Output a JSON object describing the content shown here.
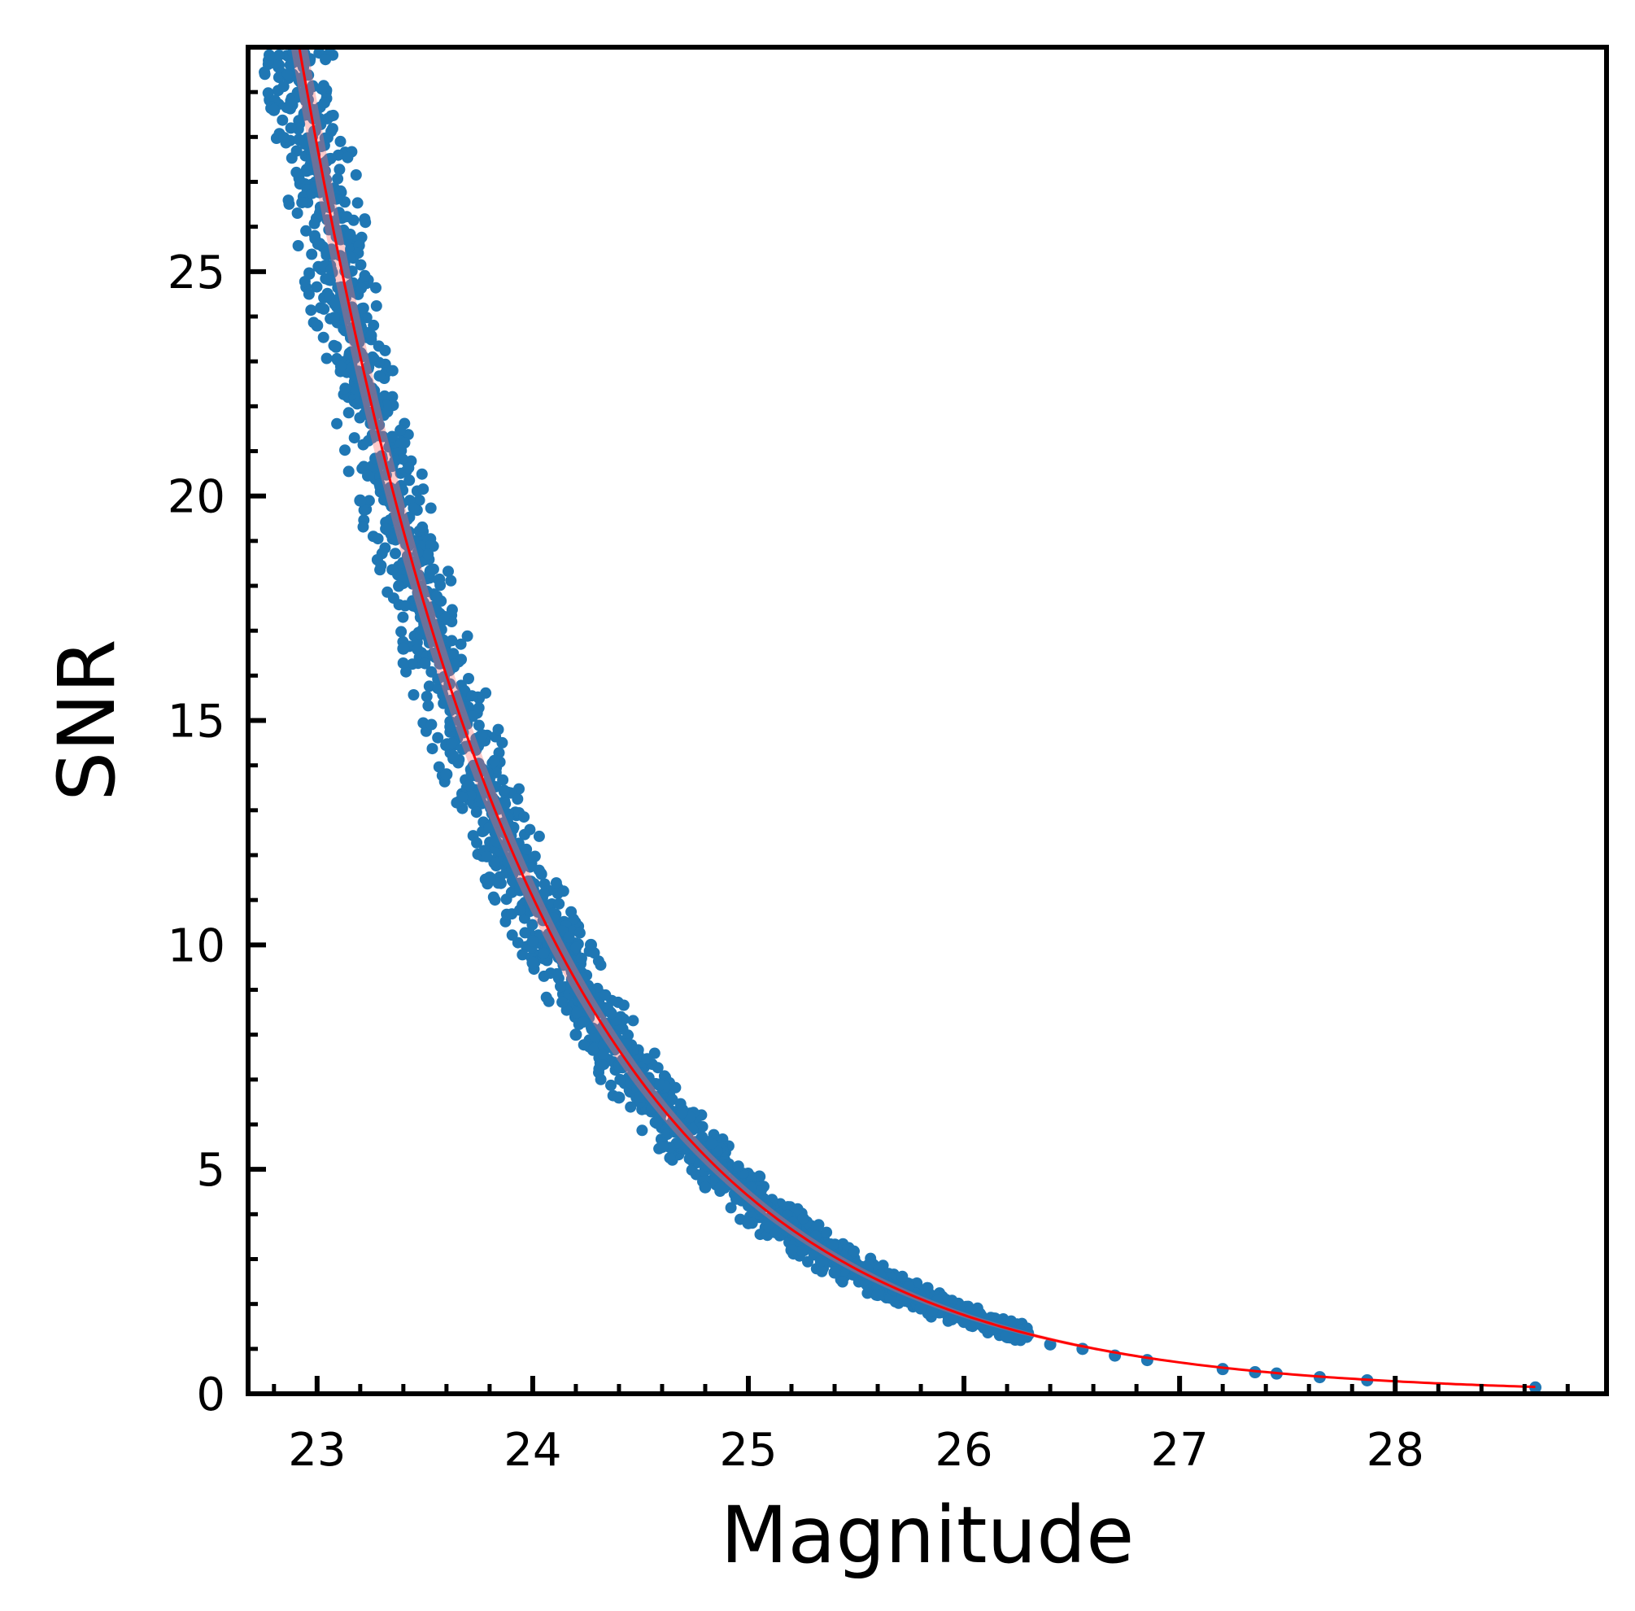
{
  "chart_data": {
    "type": "scatter",
    "title": "",
    "xlabel": "Magnitude",
    "ylabel": "SNR",
    "xlim": [
      22.68,
      28.98
    ],
    "ylim": [
      0,
      30
    ],
    "x_ticks": [
      23,
      24,
      25,
      26,
      27,
      28
    ],
    "y_ticks": [
      0,
      5,
      10,
      15,
      20,
      25
    ],
    "x_tick_labels": [
      "23",
      "24",
      "25",
      "26",
      "27",
      "28"
    ],
    "y_tick_labels": [
      "0",
      "5",
      "10",
      "15",
      "20",
      "25"
    ],
    "grid": false,
    "legend": "none",
    "colors": {
      "points": "#1f77b4",
      "fit_line": "#ff0000",
      "fit_band": "#ff6666"
    },
    "fit_curve": {
      "description_model": "SNR = 10^(0.4*(m0 - m))",
      "m0": 26.61,
      "x_range": [
        22.76,
        28.65
      ]
    },
    "series": [
      {
        "type": "scatter",
        "x_range": [
          22.72,
          28.65
        ],
        "scatter_fraction": 0.07,
        "sampled_points": [
          {
            "x": 22.8,
            "y": 28.6
          },
          {
            "x": 23.0,
            "y": 23.8
          },
          {
            "x": 23.2,
            "y": 19.9
          },
          {
            "x": 23.4,
            "y": 16.6
          },
          {
            "x": 23.6,
            "y": 13.8
          },
          {
            "x": 23.8,
            "y": 11.5
          },
          {
            "x": 24.0,
            "y": 9.6
          },
          {
            "x": 24.2,
            "y": 8.0
          },
          {
            "x": 24.27,
            "y": 10.0
          },
          {
            "x": 24.4,
            "y": 6.6
          },
          {
            "x": 24.6,
            "y": 5.5
          },
          {
            "x": 24.8,
            "y": 4.6
          },
          {
            "x": 25.0,
            "y": 3.8
          },
          {
            "x": 25.2,
            "y": 3.2
          },
          {
            "x": 25.4,
            "y": 2.7
          },
          {
            "x": 25.6,
            "y": 2.2
          },
          {
            "x": 25.8,
            "y": 1.9
          },
          {
            "x": 26.0,
            "y": 1.6
          },
          {
            "x": 26.2,
            "y": 1.3
          },
          {
            "x": 26.4,
            "y": 1.1
          },
          {
            "x": 26.55,
            "y": 1.0
          },
          {
            "x": 26.7,
            "y": 0.85
          },
          {
            "x": 26.85,
            "y": 0.75
          },
          {
            "x": 27.2,
            "y": 0.55
          },
          {
            "x": 27.35,
            "y": 0.48
          },
          {
            "x": 27.45,
            "y": 0.45
          },
          {
            "x": 27.65,
            "y": 0.37
          },
          {
            "x": 27.87,
            "y": 0.3
          },
          {
            "x": 28.65,
            "y": 0.14
          }
        ]
      }
    ]
  }
}
